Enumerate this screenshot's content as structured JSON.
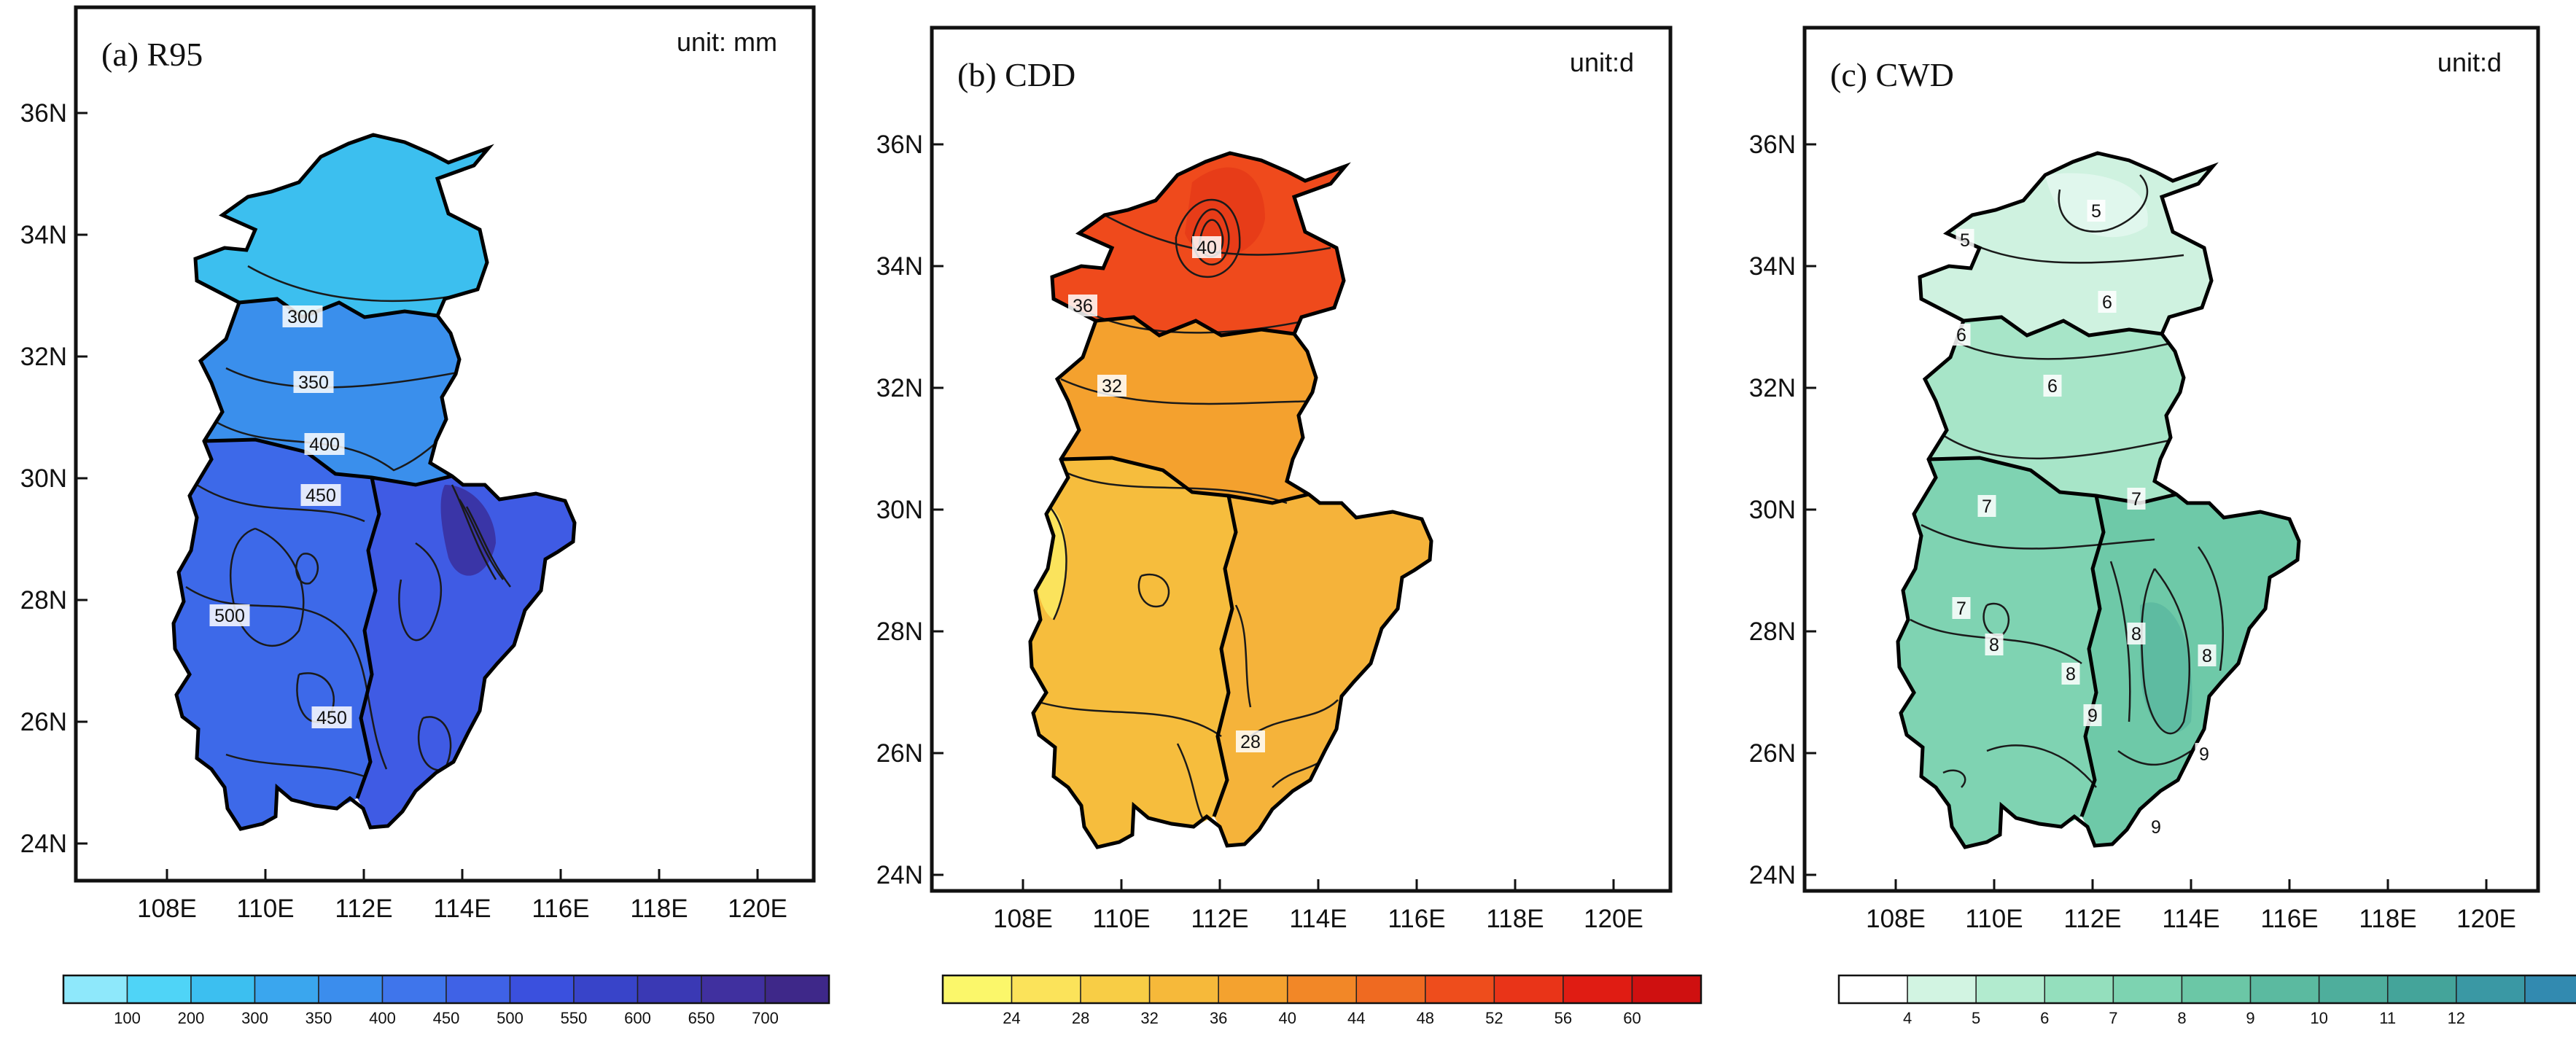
{
  "figure": {
    "description_free": true,
    "lat_labels": [
      "36N",
      "34N",
      "32N",
      "30N",
      "28N",
      "26N",
      "24N"
    ],
    "lon_labels": [
      "108E",
      "110E",
      "112E",
      "114E",
      "116E",
      "118E",
      "120E"
    ],
    "panels": [
      {
        "id": "a",
        "title": "(a)  R95",
        "unit": "unit:  mm",
        "contour_labels": [
          "300",
          "350",
          "400",
          "450",
          "500",
          "450"
        ],
        "colorbar": {
          "ticks": [
            "100",
            "200",
            "300",
            "350",
            "400",
            "450",
            "500",
            "550",
            "600",
            "650",
            "700"
          ],
          "colors": [
            "#8ee8fb",
            "#4fd4f7",
            "#3cbff0",
            "#3aa6ee",
            "#3b8ded",
            "#3f75eb",
            "#3f62e6",
            "#3a50de",
            "#3844c9",
            "#3a39b4",
            "#40309f",
            "#3e2889"
          ]
        },
        "region_colors": {
          "north": "#3cbfef",
          "middle": "#3a8fec",
          "southwest": "#3d69e9",
          "southeast": "#3f5be4"
        }
      },
      {
        "id": "b",
        "title": "(b)  CDD",
        "unit": "unit:d",
        "contour_labels": [
          "40",
          "36",
          "32",
          "28"
        ],
        "colorbar": {
          "ticks": [
            "24",
            "28",
            "32",
            "36",
            "40",
            "44",
            "48",
            "52",
            "56",
            "60"
          ],
          "colors": [
            "#fbf76a",
            "#fbe35a",
            "#f8cd45",
            "#f6b93a",
            "#f4a22f",
            "#f28727",
            "#ef6a21",
            "#ee4d1c",
            "#e93418",
            "#e01c13",
            "#cf1010"
          ]
        },
        "region_colors": {
          "north": "#ef4a1c",
          "middle": "#f4a12e",
          "southwest": "#f6bd3d",
          "southeast": "#f5b33a"
        }
      },
      {
        "id": "c",
        "title": "(c)  CWD",
        "unit": "unit:d",
        "contour_labels": [
          "5",
          "5",
          "6",
          "6",
          "6",
          "7",
          "7",
          "7",
          "8",
          "8",
          "8",
          "8",
          "9",
          "9",
          "9"
        ],
        "colorbar": {
          "ticks": [
            "4",
            "5",
            "6",
            "7",
            "8",
            "9",
            "10",
            "11",
            "12"
          ],
          "colors": [
            "#ffffff",
            "#d2f4e2",
            "#b2ebcf",
            "#94dfbd",
            "#7dd3b1",
            "#6bc7a6",
            "#5bbaa0",
            "#4eae9c",
            "#44a49a",
            "#3a98a4",
            "#328ab0"
          ]
        },
        "region_colors": {
          "north": "#cff2e0",
          "middle": "#a7e5c8",
          "southwest": "#7fd3b2",
          "southeast": "#6ec9a8"
        }
      }
    ]
  }
}
